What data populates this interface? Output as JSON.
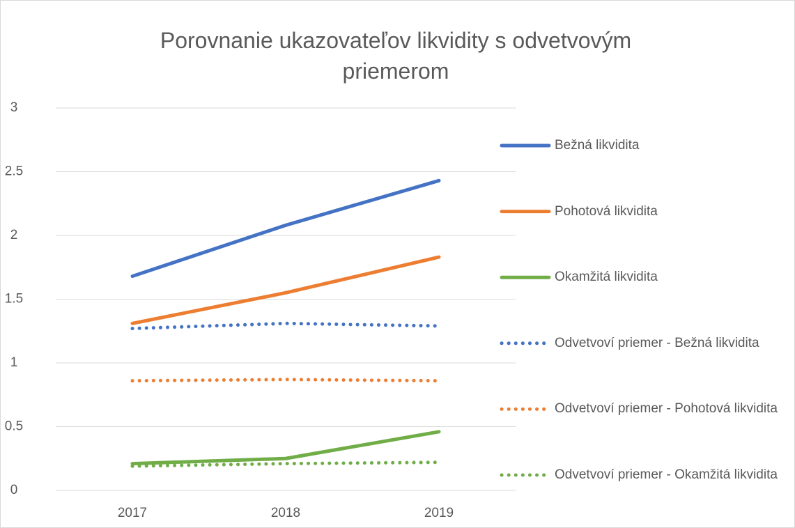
{
  "chart_data": {
    "type": "line",
    "title": "Porovnanie ukazovateľov likvidity s odvetvovým priemerom",
    "categories": [
      "2017",
      "2018",
      "2019"
    ],
    "series": [
      {
        "name": "Bežná likvidita",
        "color": "#4472c4",
        "style": "solid",
        "values": [
          1.68,
          2.08,
          2.43
        ]
      },
      {
        "name": "Pohotová likvidita",
        "color": "#ed7d31",
        "style": "solid",
        "values": [
          1.31,
          1.55,
          1.83
        ]
      },
      {
        "name": "Okamžitá likvidita",
        "color": "#70ad47",
        "style": "solid",
        "values": [
          0.21,
          0.25,
          0.46
        ]
      },
      {
        "name": "Odvetvoví priemer - Bežná likvidita",
        "color": "#4472c4",
        "style": "dotted",
        "values": [
          1.27,
          1.31,
          1.29
        ]
      },
      {
        "name": "Odvetvoví priemer - Pohotová likvidita",
        "color": "#ed7d31",
        "style": "dotted",
        "values": [
          0.86,
          0.87,
          0.86
        ]
      },
      {
        "name": "Odvetvoví priemer - Okamžitá likvidita",
        "color": "#70ad47",
        "style": "dotted",
        "values": [
          0.19,
          0.21,
          0.22
        ]
      }
    ],
    "ylim": [
      0,
      3
    ],
    "yticks": [
      0,
      0.5,
      1,
      1.5,
      2,
      2.5,
      3
    ],
    "grid": true,
    "legend": "right"
  }
}
